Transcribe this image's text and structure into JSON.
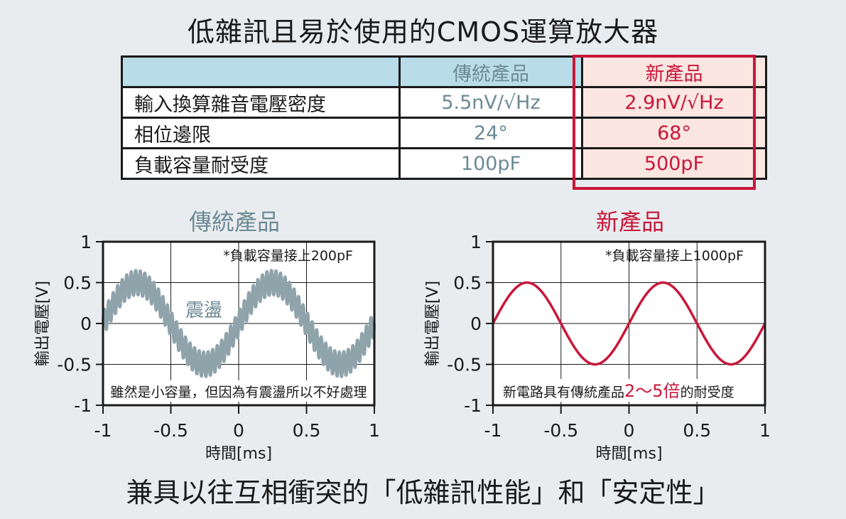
{
  "title": "低雜訊且易於使用的CMOS運算放大器",
  "table": {
    "headers": [
      "",
      "傳統產品",
      "新產品"
    ],
    "rows": [
      {
        "label": "輸入換算雜音電壓密度",
        "old": "5.5nV/√Hz",
        "new": "2.9nV/√Hz"
      },
      {
        "label": "相位邊限",
        "old": "24°",
        "new": "68°"
      },
      {
        "label": "負載容量耐受度",
        "old": "100pF",
        "new": "500pF"
      }
    ]
  },
  "colors": {
    "old_series": "#8fa3ab",
    "new_series": "#c8173a",
    "old_text": "#6c8a95",
    "new_text": "#c8173a",
    "header_blue": "#b9dde8",
    "header_pink": "#fbe6e1"
  },
  "chart_data": [
    {
      "type": "line",
      "title": "傳統產品",
      "xlabel": "時間[ms]",
      "ylabel": "輸出電壓[V]",
      "xlim": [
        -1,
        1
      ],
      "ylim": [
        -1,
        1
      ],
      "xticks": [
        "-1",
        "-0.5",
        "0",
        "0.5",
        "1"
      ],
      "yticks": [
        "1",
        "0.5",
        "0",
        "-0.5",
        "-1"
      ],
      "grid": true,
      "series": [
        {
          "amplitude": 0.5,
          "period_ms": 1,
          "peak_at_ms": -0.75,
          "ringing_amplitude": 0.15,
          "ringing_cycles_per_ms": 30
        }
      ],
      "annotations": {
        "top_right": "*負載容量接上200pF",
        "mid": "震盪",
        "bottom": "雖然是小容量，但因為有震盪所以不好處理"
      }
    },
    {
      "type": "line",
      "title": "新產品",
      "xlabel": "時間[ms]",
      "ylabel": "輸出電壓[V]",
      "xlim": [
        -1,
        1
      ],
      "ylim": [
        -1,
        1
      ],
      "xticks": [
        "-1",
        "-0.5",
        "0",
        "0.5",
        "1"
      ],
      "yticks": [
        "1",
        "0.5",
        "0",
        "-0.5",
        "-1"
      ],
      "grid": true,
      "series": [
        {
          "amplitude": 0.5,
          "period_ms": 1,
          "peak_at_ms": -0.75,
          "ringing_amplitude": 0
        }
      ],
      "annotations": {
        "top_right": "*負載容量接上1000pF",
        "bottom_pre": "新電路具有傳統產品",
        "bottom_hl": "2～5倍",
        "bottom_post": "的耐受度"
      }
    }
  ],
  "footer": "兼具以往互相衝突的「低雜訊性能」和「安定性」"
}
